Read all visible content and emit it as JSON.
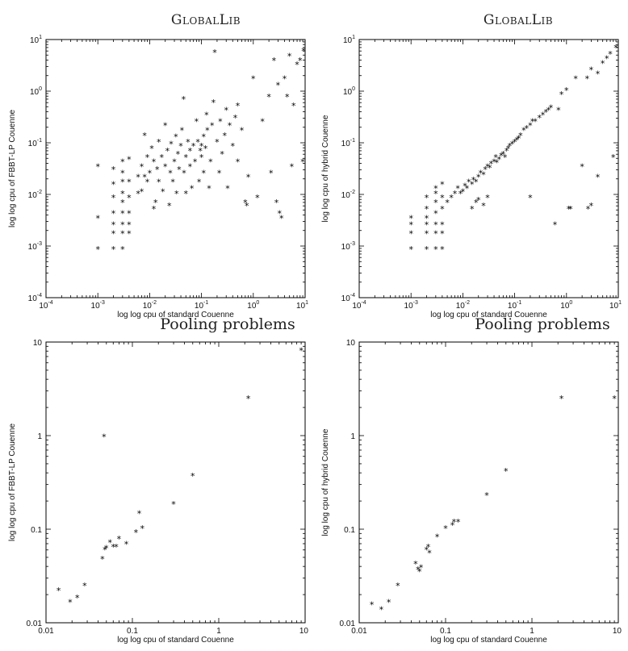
{
  "chart_data": [
    {
      "type": "scatter",
      "title": "GlobalLib",
      "xlabel": "log log cpu of standard Couenne",
      "ylabel": "log log cpu of FBBT-LP Couenne",
      "xscale": "log",
      "yscale": "log",
      "xlim": [
        0.0001,
        10
      ],
      "ylim": [
        0.0001,
        10
      ],
      "xticks": [
        "10-4",
        "10-3",
        "10-2",
        "10-1",
        "100",
        "101"
      ],
      "yticks": [
        "10-4",
        "10-3",
        "10-2",
        "10-1",
        "100",
        "101"
      ],
      "grid": false,
      "marker": "*",
      "points": [
        [
          0.001,
          0.001
        ],
        [
          0.001,
          0.004
        ],
        [
          0.001,
          0.04
        ],
        [
          0.002,
          0.001
        ],
        [
          0.002,
          0.002
        ],
        [
          0.002,
          0.003
        ],
        [
          0.002,
          0.005
        ],
        [
          0.002,
          0.01
        ],
        [
          0.002,
          0.018
        ],
        [
          0.002,
          0.035
        ],
        [
          0.003,
          0.001
        ],
        [
          0.003,
          0.002
        ],
        [
          0.003,
          0.003
        ],
        [
          0.003,
          0.005
        ],
        [
          0.003,
          0.008
        ],
        [
          0.003,
          0.012
        ],
        [
          0.003,
          0.02
        ],
        [
          0.003,
          0.03
        ],
        [
          0.003,
          0.05
        ],
        [
          0.004,
          0.002
        ],
        [
          0.004,
          0.003
        ],
        [
          0.004,
          0.005
        ],
        [
          0.004,
          0.01
        ],
        [
          0.004,
          0.02
        ],
        [
          0.004,
          0.055
        ],
        [
          0.006,
          0.012
        ],
        [
          0.006,
          0.025
        ],
        [
          0.007,
          0.04
        ],
        [
          0.007,
          0.013
        ],
        [
          0.008,
          0.16
        ],
        [
          0.008,
          0.025
        ],
        [
          0.009,
          0.06
        ],
        [
          0.009,
          0.02
        ],
        [
          0.01,
          0.03
        ],
        [
          0.011,
          0.09
        ],
        [
          0.012,
          0.05
        ],
        [
          0.012,
          0.006
        ],
        [
          0.013,
          0.008
        ],
        [
          0.014,
          0.035
        ],
        [
          0.015,
          0.12
        ],
        [
          0.015,
          0.02
        ],
        [
          0.017,
          0.06
        ],
        [
          0.018,
          0.013
        ],
        [
          0.02,
          0.04
        ],
        [
          0.02,
          0.25
        ],
        [
          0.022,
          0.08
        ],
        [
          0.024,
          0.007
        ],
        [
          0.025,
          0.03
        ],
        [
          0.026,
          0.11
        ],
        [
          0.028,
          0.02
        ],
        [
          0.03,
          0.05
        ],
        [
          0.032,
          0.15
        ],
        [
          0.033,
          0.012
        ],
        [
          0.035,
          0.07
        ],
        [
          0.037,
          0.035
        ],
        [
          0.04,
          0.1
        ],
        [
          0.042,
          0.2
        ],
        [
          0.045,
          0.8
        ],
        [
          0.046,
          0.03
        ],
        [
          0.05,
          0.06
        ],
        [
          0.05,
          0.012
        ],
        [
          0.055,
          0.12
        ],
        [
          0.06,
          0.04
        ],
        [
          0.06,
          0.08
        ],
        [
          0.065,
          0.015
        ],
        [
          0.07,
          0.1
        ],
        [
          0.075,
          0.05
        ],
        [
          0.08,
          0.3
        ],
        [
          0.085,
          0.12
        ],
        [
          0.09,
          0.02
        ],
        [
          0.095,
          0.08
        ],
        [
          0.1,
          0.06
        ],
        [
          0.1,
          0.1
        ],
        [
          0.11,
          0.15
        ],
        [
          0.11,
          0.03
        ],
        [
          0.12,
          0.09
        ],
        [
          0.125,
          0.4
        ],
        [
          0.13,
          0.2
        ],
        [
          0.14,
          0.015
        ],
        [
          0.15,
          0.05
        ],
        [
          0.16,
          0.25
        ],
        [
          0.17,
          0.7
        ],
        [
          0.18,
          6.5
        ],
        [
          0.2,
          0.12
        ],
        [
          0.22,
          0.03
        ],
        [
          0.23,
          0.3
        ],
        [
          0.25,
          0.07
        ],
        [
          0.28,
          0.16
        ],
        [
          0.3,
          0.5
        ],
        [
          0.32,
          0.015
        ],
        [
          0.35,
          0.25
        ],
        [
          0.4,
          0.1
        ],
        [
          0.45,
          0.35
        ],
        [
          0.5,
          0.05
        ],
        [
          0.5,
          0.6
        ],
        [
          0.6,
          0.2
        ],
        [
          0.7,
          0.008
        ],
        [
          0.75,
          0.007
        ],
        [
          0.8,
          0.025
        ],
        [
          1.0,
          2.0
        ],
        [
          1.2,
          0.01
        ],
        [
          1.5,
          0.3
        ],
        [
          2.0,
          0.9
        ],
        [
          2.2,
          0.03
        ],
        [
          2.5,
          4.5
        ],
        [
          2.8,
          0.008
        ],
        [
          3.0,
          1.5
        ],
        [
          3.2,
          0.005
        ],
        [
          3.5,
          0.004
        ],
        [
          4.0,
          2.0
        ],
        [
          4.5,
          0.9
        ],
        [
          5.0,
          5.5
        ],
        [
          5.5,
          0.04
        ],
        [
          6.0,
          0.6
        ],
        [
          7.0,
          3.8
        ],
        [
          8.0,
          4.5
        ],
        [
          9.0,
          0.05
        ],
        [
          9.5,
          7.0
        ]
      ]
    },
    {
      "type": "scatter",
      "title": "GlobalLib",
      "xlabel": "log log cpu of standard Couenne",
      "ylabel": "log log cpu of hybrid Couenne",
      "xscale": "log",
      "yscale": "log",
      "xlim": [
        0.0001,
        10
      ],
      "ylim": [
        0.0001,
        10
      ],
      "xticks": [
        "10-4",
        "10-3",
        "10-2",
        "10-1",
        "100",
        "101"
      ],
      "yticks": [
        "10-4",
        "10-3",
        "10-2",
        "10-1",
        "100",
        "101"
      ],
      "grid": false,
      "marker": "*",
      "points": [
        [
          0.001,
          0.001
        ],
        [
          0.001,
          0.002
        ],
        [
          0.001,
          0.003
        ],
        [
          0.001,
          0.004
        ],
        [
          0.002,
          0.001
        ],
        [
          0.002,
          0.002
        ],
        [
          0.002,
          0.003
        ],
        [
          0.002,
          0.004
        ],
        [
          0.002,
          0.006
        ],
        [
          0.002,
          0.01
        ],
        [
          0.003,
          0.001
        ],
        [
          0.003,
          0.002
        ],
        [
          0.003,
          0.003
        ],
        [
          0.003,
          0.005
        ],
        [
          0.003,
          0.008
        ],
        [
          0.003,
          0.012
        ],
        [
          0.003,
          0.015
        ],
        [
          0.004,
          0.001
        ],
        [
          0.004,
          0.002
        ],
        [
          0.004,
          0.003
        ],
        [
          0.004,
          0.006
        ],
        [
          0.004,
          0.01
        ],
        [
          0.004,
          0.018
        ],
        [
          0.005,
          0.008
        ],
        [
          0.006,
          0.01
        ],
        [
          0.007,
          0.012
        ],
        [
          0.008,
          0.015
        ],
        [
          0.009,
          0.012
        ],
        [
          0.01,
          0.013
        ],
        [
          0.011,
          0.017
        ],
        [
          0.012,
          0.015
        ],
        [
          0.013,
          0.02
        ],
        [
          0.015,
          0.018
        ],
        [
          0.016,
          0.022
        ],
        [
          0.018,
          0.02
        ],
        [
          0.02,
          0.025
        ],
        [
          0.022,
          0.03
        ],
        [
          0.025,
          0.028
        ],
        [
          0.027,
          0.035
        ],
        [
          0.03,
          0.04
        ],
        [
          0.033,
          0.038
        ],
        [
          0.035,
          0.045
        ],
        [
          0.04,
          0.05
        ],
        [
          0.043,
          0.06
        ],
        [
          0.045,
          0.048
        ],
        [
          0.05,
          0.055
        ],
        [
          0.055,
          0.065
        ],
        [
          0.06,
          0.07
        ],
        [
          0.065,
          0.06
        ],
        [
          0.07,
          0.08
        ],
        [
          0.075,
          0.09
        ],
        [
          0.08,
          0.1
        ],
        [
          0.09,
          0.11
        ],
        [
          0.1,
          0.12
        ],
        [
          0.11,
          0.13
        ],
        [
          0.12,
          0.14
        ],
        [
          0.13,
          0.16
        ],
        [
          0.15,
          0.2
        ],
        [
          0.17,
          0.22
        ],
        [
          0.2,
          0.25
        ],
        [
          0.22,
          0.3
        ],
        [
          0.25,
          0.3
        ],
        [
          0.3,
          0.35
        ],
        [
          0.35,
          0.4
        ],
        [
          0.4,
          0.45
        ],
        [
          0.45,
          0.5
        ],
        [
          0.5,
          0.55
        ],
        [
          0.018,
          0.008
        ],
        [
          0.015,
          0.006
        ],
        [
          0.02,
          0.009
        ],
        [
          0.025,
          0.007
        ],
        [
          0.03,
          0.01
        ],
        [
          0.2,
          0.01
        ],
        [
          0.6,
          0.003
        ],
        [
          0.7,
          0.5
        ],
        [
          0.8,
          1.0
        ],
        [
          1.0,
          1.2
        ],
        [
          1.1,
          0.006
        ],
        [
          1.2,
          0.006
        ],
        [
          1.5,
          2.0
        ],
        [
          2.0,
          0.04
        ],
        [
          2.5,
          2.0
        ],
        [
          2.6,
          0.006
        ],
        [
          3.0,
          0.007
        ],
        [
          3.0,
          3.0
        ],
        [
          4.0,
          2.5
        ],
        [
          4.0,
          0.025
        ],
        [
          5.0,
          4.0
        ],
        [
          6.0,
          5.0
        ],
        [
          7.0,
          6.0
        ],
        [
          8.0,
          0.06
        ],
        [
          9.0,
          8.0
        ]
      ]
    },
    {
      "type": "scatter",
      "title": "Pooling problems",
      "xlabel": "log log cpu of standard Couenne",
      "ylabel": "log log cpu of FBBT-LP Couenne",
      "xscale": "log",
      "yscale": "log",
      "xlim": [
        0.01,
        10
      ],
      "ylim": [
        0.01,
        10
      ],
      "xticks": [
        "0.01",
        "0.1",
        "1",
        "10"
      ],
      "yticks": [
        "0.01",
        "0.1",
        "1",
        "10"
      ],
      "grid": false,
      "marker": "*",
      "points": [
        [
          0.014,
          0.024
        ],
        [
          0.019,
          0.018
        ],
        [
          0.023,
          0.02
        ],
        [
          0.028,
          0.027
        ],
        [
          0.045,
          0.052
        ],
        [
          0.047,
          1.05
        ],
        [
          0.048,
          0.065
        ],
        [
          0.05,
          0.068
        ],
        [
          0.055,
          0.078
        ],
        [
          0.06,
          0.07
        ],
        [
          0.065,
          0.07
        ],
        [
          0.07,
          0.085
        ],
        [
          0.085,
          0.075
        ],
        [
          0.11,
          0.1
        ],
        [
          0.12,
          0.16
        ],
        [
          0.13,
          0.11
        ],
        [
          0.3,
          0.2
        ],
        [
          0.5,
          0.4
        ],
        [
          2.2,
          2.7
        ],
        [
          9.0,
          8.8
        ]
      ]
    },
    {
      "type": "scatter",
      "title": "Pooling problems",
      "xlabel": "log log cpu of standard Couenne",
      "ylabel": "log log cpu of hybrid Couenne",
      "xscale": "log",
      "yscale": "log",
      "xlim": [
        0.01,
        10
      ],
      "ylim": [
        0.01,
        10
      ],
      "xticks": [
        "0.01",
        "0.1",
        "1",
        "10"
      ],
      "yticks": [
        "0.01",
        "0.1",
        "1",
        "10"
      ],
      "grid": false,
      "marker": "*",
      "points": [
        [
          0.014,
          0.017
        ],
        [
          0.018,
          0.015
        ],
        [
          0.022,
          0.018
        ],
        [
          0.028,
          0.027
        ],
        [
          0.045,
          0.046
        ],
        [
          0.048,
          0.04
        ],
        [
          0.05,
          0.038
        ],
        [
          0.052,
          0.042
        ],
        [
          0.06,
          0.065
        ],
        [
          0.063,
          0.07
        ],
        [
          0.065,
          0.06
        ],
        [
          0.08,
          0.09
        ],
        [
          0.1,
          0.11
        ],
        [
          0.12,
          0.12
        ],
        [
          0.125,
          0.13
        ],
        [
          0.14,
          0.13
        ],
        [
          0.3,
          0.25
        ],
        [
          0.5,
          0.45
        ],
        [
          2.2,
          2.7
        ],
        [
          9.0,
          2.7
        ]
      ]
    }
  ]
}
